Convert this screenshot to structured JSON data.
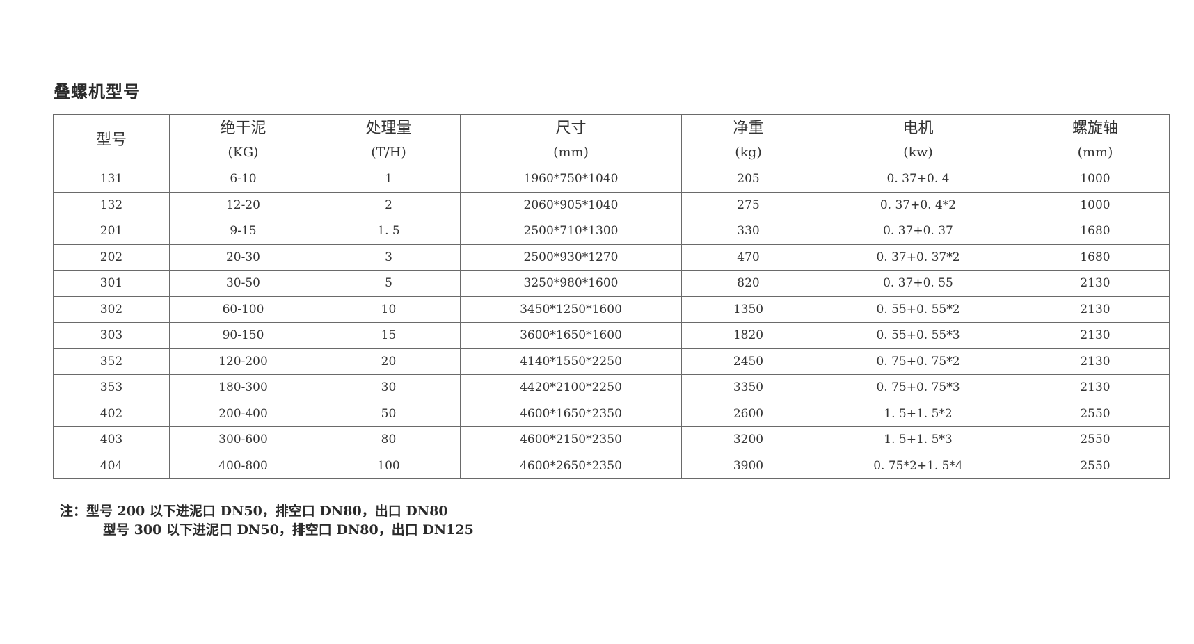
{
  "title": "叠螺机型号",
  "table": {
    "headers": [
      {
        "label": "型号",
        "unit": ""
      },
      {
        "label": "绝干泥",
        "unit": "(KG)"
      },
      {
        "label": "处理量",
        "unit": "(T/H)"
      },
      {
        "label": "尺寸",
        "unit": "(mm)"
      },
      {
        "label": "净重",
        "unit": "(kg)"
      },
      {
        "label": "电机",
        "unit": "(kw)"
      },
      {
        "label": "螺旋轴",
        "unit": "(mm)"
      }
    ],
    "rows": [
      [
        "131",
        "6-10",
        "1",
        "1960*750*1040",
        "205",
        "0. 37+0. 4",
        "1000"
      ],
      [
        "132",
        "12-20",
        "2",
        "2060*905*1040",
        "275",
        "0. 37+0. 4*2",
        "1000"
      ],
      [
        "201",
        "9-15",
        "1. 5",
        "2500*710*1300",
        "330",
        "0. 37+0. 37",
        "1680"
      ],
      [
        "202",
        "20-30",
        "3",
        "2500*930*1270",
        "470",
        "0. 37+0. 37*2",
        "1680"
      ],
      [
        "301",
        "30-50",
        "5",
        "3250*980*1600",
        "820",
        "0. 37+0. 55",
        "2130"
      ],
      [
        "302",
        "60-100",
        "10",
        "3450*1250*1600",
        "1350",
        "0. 55+0. 55*2",
        "2130"
      ],
      [
        "303",
        "90-150",
        "15",
        "3600*1650*1600",
        "1820",
        "0. 55+0. 55*3",
        "2130"
      ],
      [
        "352",
        "120-200",
        "20",
        "4140*1550*2250",
        "2450",
        "0. 75+0. 75*2",
        "2130"
      ],
      [
        "353",
        "180-300",
        "30",
        "4420*2100*2250",
        "3350",
        "0. 75+0. 75*3",
        "2130"
      ],
      [
        "402",
        "200-400",
        "50",
        "4600*1650*2350",
        "2600",
        "1. 5+1. 5*2",
        "2550"
      ],
      [
        "403",
        "300-600",
        "80",
        "4600*2150*2350",
        "3200",
        "1. 5+1. 5*3",
        "2550"
      ],
      [
        "404",
        "400-800",
        "100",
        "4600*2650*2350",
        "3900",
        "0. 75*2+1. 5*4",
        "2550"
      ]
    ]
  },
  "notes": {
    "line1": "注：型号 200 以下进泥口 DN50，排空口 DN80，出口 DN80",
    "line2": "型号 300 以下进泥口 DN50，排空口 DN80，出口 DN125"
  }
}
